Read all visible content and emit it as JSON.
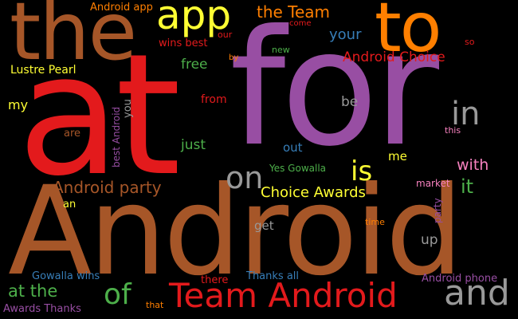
{
  "words": [
    {
      "id": "w-at",
      "text": "at",
      "color": "#e31a1c"
    },
    {
      "id": "w-for",
      "text": "for",
      "color": "#984ea3"
    },
    {
      "id": "w-android-big",
      "text": "Android",
      "color": "#a65628"
    },
    {
      "id": "w-the",
      "text": "the",
      "color": "#a65628"
    },
    {
      "id": "w-to",
      "text": "to",
      "color": "#ff7f00"
    },
    {
      "id": "w-app",
      "text": "app",
      "color": "#ffff33"
    },
    {
      "id": "w-the-team",
      "text": "the Team",
      "color": "#ff7f00"
    },
    {
      "id": "w-android-app",
      "text": "Android app",
      "color": "#ff7f00"
    },
    {
      "id": "w-your",
      "text": "your",
      "color": "#377eb8"
    },
    {
      "id": "w-android-choice",
      "text": "Android Choice",
      "color": "#e31a1c"
    },
    {
      "id": "w-come",
      "text": "come",
      "color": "#e31a1c"
    },
    {
      "id": "w-so",
      "text": "so",
      "color": "#e31a1c"
    },
    {
      "id": "w-our",
      "text": "our",
      "color": "#e31a1c"
    },
    {
      "id": "w-wins-best",
      "text": "wins best",
      "color": "#e31a1c"
    },
    {
      "id": "w-new",
      "text": "new",
      "color": "#4daf4a"
    },
    {
      "id": "w-by",
      "text": "by",
      "color": "#ff7f00"
    },
    {
      "id": "w-free",
      "text": "free",
      "color": "#4daf4a"
    },
    {
      "id": "w-lustre-pearl",
      "text": "Lustre Pearl",
      "color": "#ffff33"
    },
    {
      "id": "w-in",
      "text": "in",
      "color": "#999999"
    },
    {
      "id": "w-my",
      "text": "my",
      "color": "#ffff33"
    },
    {
      "id": "w-you",
      "text": "you",
      "color": "#999999"
    },
    {
      "id": "w-best-android",
      "text": "best Android",
      "color": "#984ea3"
    },
    {
      "id": "w-from",
      "text": "from",
      "color": "#e31a1c"
    },
    {
      "id": "w-be",
      "text": "be",
      "color": "#999999"
    },
    {
      "id": "w-this",
      "text": "this",
      "color": "#f781bf"
    },
    {
      "id": "w-are",
      "text": "are",
      "color": "#a65628"
    },
    {
      "id": "w-just",
      "text": "just",
      "color": "#4daf4a"
    },
    {
      "id": "w-out",
      "text": "out",
      "color": "#377eb8"
    },
    {
      "id": "w-me",
      "text": "me",
      "color": "#ffff33"
    },
    {
      "id": "w-on",
      "text": "on",
      "color": "#999999"
    },
    {
      "id": "w-is",
      "text": "is",
      "color": "#ffff33"
    },
    {
      "id": "w-yes-gowalla",
      "text": "Yes Gowalla",
      "color": "#4daf4a"
    },
    {
      "id": "w-with",
      "text": "with",
      "color": "#f781bf"
    },
    {
      "id": "w-android-party",
      "text": "Android party",
      "color": "#a65628"
    },
    {
      "id": "w-choice-awards",
      "text": "Choice Awards",
      "color": "#ffff33"
    },
    {
      "id": "w-market",
      "text": "market",
      "color": "#f781bf"
    },
    {
      "id": "w-it",
      "text": "it",
      "color": "#4daf4a"
    },
    {
      "id": "w-party",
      "text": "party",
      "color": "#984ea3"
    },
    {
      "id": "w-an",
      "text": "an",
      "color": "#ffff33"
    },
    {
      "id": "w-time",
      "text": "time",
      "color": "#ff7f00"
    },
    {
      "id": "w-get",
      "text": "get",
      "color": "#999999"
    },
    {
      "id": "w-up",
      "text": "up",
      "color": "#999999"
    },
    {
      "id": "w-gowalla-wins",
      "text": "Gowalla wins",
      "color": "#377eb8"
    },
    {
      "id": "w-there",
      "text": "there",
      "color": "#e31a1c"
    },
    {
      "id": "w-thanks-all",
      "text": "Thanks all",
      "color": "#377eb8"
    },
    {
      "id": "w-android-phone",
      "text": "Android phone",
      "color": "#984ea3"
    },
    {
      "id": "w-at-the",
      "text": "at the",
      "color": "#4daf4a"
    },
    {
      "id": "w-of",
      "text": "of",
      "color": "#4daf4a"
    },
    {
      "id": "w-team-android",
      "text": "Team Android",
      "color": "#e31a1c"
    },
    {
      "id": "w-and",
      "text": "and",
      "color": "#999999"
    },
    {
      "id": "w-awards-thanks",
      "text": "Awards Thanks",
      "color": "#984ea3"
    },
    {
      "id": "w-that",
      "text": "that",
      "color": "#ff7f00"
    }
  ]
}
